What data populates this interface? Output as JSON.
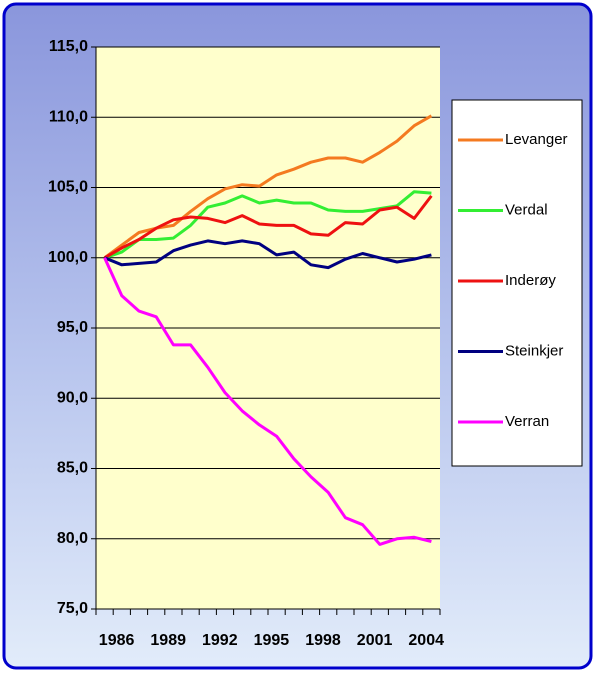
{
  "chart_data": {
    "type": "line",
    "categories": [
      "1986",
      null,
      null,
      "1989",
      null,
      null,
      "1992",
      null,
      null,
      "1995",
      null,
      null,
      "1998",
      null,
      null,
      "2001",
      null,
      null,
      "2004",
      null
    ],
    "series": [
      {
        "name": "Levanger",
        "color": "#f47a20",
        "values": [
          100,
          100.9,
          101.8,
          102.1,
          102.3,
          103.3,
          104.2,
          104.9,
          105.2,
          105.1,
          105.9,
          106.3,
          106.8,
          107.1,
          107.1,
          106.8,
          107.5,
          108.3,
          109.4,
          110.1
        ]
      },
      {
        "name": "Verdal",
        "color": "#33ee33",
        "values": [
          100,
          100.4,
          101.3,
          101.3,
          101.4,
          102.3,
          103.6,
          103.9,
          104.4,
          103.9,
          104.1,
          103.9,
          103.9,
          103.4,
          103.3,
          103.3,
          103.5,
          103.7,
          104.7,
          104.6
        ]
      },
      {
        "name": "Inderøy",
        "color": "#ee1111",
        "values": [
          100,
          100.7,
          101.3,
          102.1,
          102.7,
          102.9,
          102.8,
          102.5,
          103.0,
          102.4,
          102.3,
          102.3,
          101.7,
          101.6,
          102.5,
          102.4,
          103.4,
          103.6,
          102.8,
          104.4
        ]
      },
      {
        "name": "Steinkjer",
        "color": "#000080",
        "values": [
          100,
          99.5,
          99.6,
          99.7,
          100.5,
          100.9,
          101.2,
          101.0,
          101.2,
          101.0,
          100.2,
          100.4,
          99.5,
          99.3,
          99.9,
          100.3,
          100.0,
          99.7,
          99.9,
          100.2
        ]
      },
      {
        "name": "Verran",
        "color": "#ff00ff",
        "values": [
          100,
          97.3,
          96.2,
          95.8,
          93.8,
          93.8,
          92.2,
          90.4,
          89.1,
          88.1,
          87.3,
          85.7,
          84.4,
          83.3,
          81.5,
          81.0,
          79.6,
          80.0,
          80.1,
          79.8
        ]
      }
    ],
    "ylim": [
      75,
      115
    ],
    "yticks": [
      {
        "value": 75,
        "label": "75,0"
      },
      {
        "value": 80,
        "label": "80,0"
      },
      {
        "value": 85,
        "label": "85,0"
      },
      {
        "value": 90,
        "label": "90,0"
      },
      {
        "value": 95,
        "label": "95,0"
      },
      {
        "value": 100,
        "label": "100,0"
      },
      {
        "value": 105,
        "label": "105,0"
      },
      {
        "value": 110,
        "label": "110,0"
      },
      {
        "value": 115,
        "label": "115,0"
      }
    ],
    "grid": true,
    "legend": "right"
  }
}
